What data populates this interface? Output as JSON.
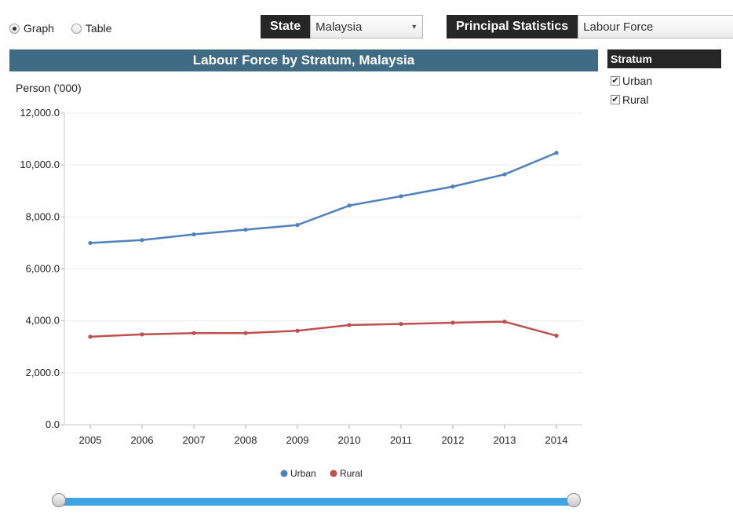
{
  "view_toggle": {
    "options": [
      {
        "label": "Graph",
        "selected": true
      },
      {
        "label": "Table",
        "selected": false
      }
    ]
  },
  "filters": {
    "state": {
      "label": "State",
      "value": "Malaysia"
    },
    "principal": {
      "label": "Principal Statistics",
      "value": "Labour Force"
    }
  },
  "stratum_panel": {
    "header": "Stratum",
    "items": [
      {
        "label": "Urban",
        "checked": true
      },
      {
        "label": "Rural",
        "checked": true
      }
    ]
  },
  "colors": {
    "title_bar": "#3f6b84",
    "urban": "#4f81bd",
    "rural": "#c0504d",
    "slider": "#3ea4e6"
  },
  "slider": {
    "start": 2005,
    "end": 2014
  },
  "chart_data": {
    "type": "line",
    "title": "Labour Force by Stratum, Malaysia",
    "ylabel": "Person ('000)",
    "xlabel": "",
    "x": [
      "2005",
      "2006",
      "2007",
      "2008",
      "2009",
      "2010",
      "2011",
      "2012",
      "2013",
      "2014"
    ],
    "yticks": [
      "0.0",
      "2,000.0",
      "4,000.0",
      "6,000.0",
      "8,000.0",
      "10,000.0",
      "12,000.0"
    ],
    "ylim": [
      0,
      12000
    ],
    "grid": true,
    "legend": "bottom-center",
    "series": [
      {
        "name": "Urban",
        "color": "#4f81bd",
        "values": [
          7000,
          7110,
          7330,
          7510,
          7690,
          8440,
          8800,
          9170,
          9640,
          10470
        ]
      },
      {
        "name": "Rural",
        "color": "#c0504d",
        "values": [
          3390,
          3480,
          3530,
          3530,
          3620,
          3840,
          3880,
          3930,
          3970,
          3430
        ]
      }
    ]
  }
}
